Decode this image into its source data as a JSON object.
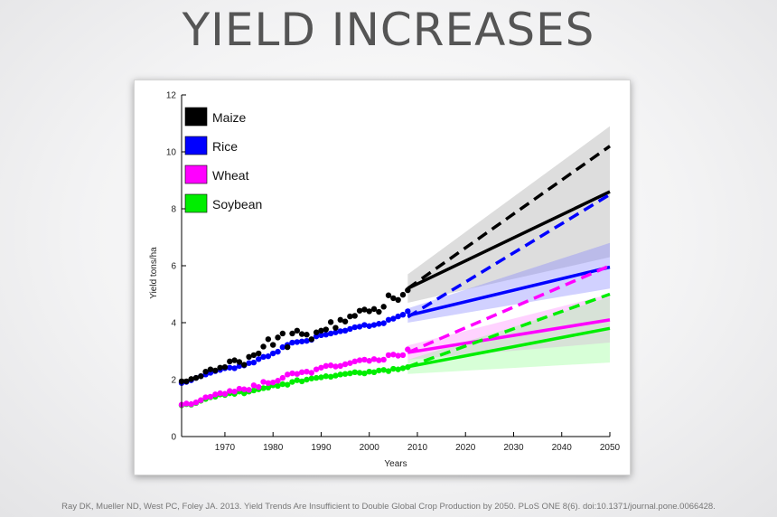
{
  "slide": {
    "title": "YIELD INCREASES",
    "citation": "Ray DK, Mueller ND, West PC, Foley JA. 2013. Yield Trends Are Insufficient to Double Global Crop Production by 2050. PLoS ONE 8(6). doi:10.1371/journal.pone.0066428."
  },
  "chart_data": {
    "type": "scatter",
    "xlabel": "Years",
    "ylabel": "Yield tons/ha",
    "xlim": [
      1961,
      2050
    ],
    "ylim": [
      0,
      12
    ],
    "xticks": [
      1970,
      1980,
      1990,
      2000,
      2010,
      2020,
      2030,
      2040,
      2050
    ],
    "yticks": [
      0,
      2,
      4,
      6,
      8,
      10,
      12
    ],
    "grid": false,
    "legend_position": "top-left",
    "historical_years": [
      1961,
      2008
    ],
    "series": [
      {
        "name": "Maize",
        "color": "#000000",
        "band_color": "#9e9e9e",
        "observed": [
          1.94,
          1.94,
          2.02,
          2.06,
          2.12,
          2.28,
          2.36,
          2.32,
          2.42,
          2.44,
          2.64,
          2.68,
          2.62,
          2.52,
          2.8,
          2.86,
          2.92,
          3.16,
          3.42,
          3.22,
          3.48,
          3.62,
          3.14,
          3.62,
          3.72,
          3.6,
          3.58,
          3.42,
          3.66,
          3.72,
          3.76,
          4.02,
          3.82,
          4.1,
          4.04,
          4.22,
          4.24,
          4.42,
          4.46,
          4.4,
          4.48,
          4.38,
          4.56,
          4.96,
          4.86,
          4.8,
          4.98,
          5.14
        ],
        "required": {
          "x": [
            2008,
            2050
          ],
          "y": [
            5.2,
            10.2
          ]
        },
        "projected": {
          "x": [
            2008,
            2050
          ],
          "y": [
            5.2,
            8.6
          ]
        },
        "band": {
          "x": [
            2008,
            2050
          ],
          "low": [
            4.7,
            6.3
          ],
          "high": [
            5.7,
            10.9
          ]
        }
      },
      {
        "name": "Rice",
        "color": "#0000ff",
        "band_color": "#7b7bff",
        "observed": [
          1.88,
          1.92,
          1.98,
          2.06,
          2.12,
          2.18,
          2.24,
          2.3,
          2.34,
          2.4,
          2.42,
          2.4,
          2.48,
          2.5,
          2.58,
          2.6,
          2.72,
          2.8,
          2.82,
          2.92,
          2.98,
          3.14,
          3.22,
          3.3,
          3.32,
          3.34,
          3.36,
          3.4,
          3.52,
          3.56,
          3.58,
          3.62,
          3.66,
          3.7,
          3.72,
          3.78,
          3.84,
          3.86,
          3.92,
          3.88,
          3.92,
          3.96,
          3.98,
          4.1,
          4.14,
          4.22,
          4.28,
          4.4
        ],
        "required": {
          "x": [
            2008,
            2050
          ],
          "y": [
            4.2,
            8.5
          ]
        },
        "projected": {
          "x": [
            2008,
            2050
          ],
          "y": [
            4.25,
            5.95
          ]
        },
        "band": {
          "x": [
            2008,
            2050
          ],
          "low": [
            4.0,
            5.2
          ],
          "high": [
            4.5,
            6.8
          ]
        }
      },
      {
        "name": "Wheat",
        "color": "#ff00ff",
        "band_color": "#ff80ff",
        "observed": [
          1.12,
          1.16,
          1.14,
          1.2,
          1.28,
          1.38,
          1.4,
          1.48,
          1.52,
          1.5,
          1.6,
          1.58,
          1.68,
          1.66,
          1.64,
          1.8,
          1.74,
          1.92,
          1.88,
          1.9,
          1.96,
          2.06,
          2.18,
          2.22,
          2.2,
          2.26,
          2.28,
          2.24,
          2.36,
          2.42,
          2.48,
          2.5,
          2.46,
          2.48,
          2.54,
          2.58,
          2.64,
          2.68,
          2.7,
          2.66,
          2.72,
          2.68,
          2.7,
          2.86,
          2.88,
          2.84,
          2.86,
          3.06
        ],
        "required": {
          "x": [
            2008,
            2050
          ],
          "y": [
            2.95,
            6.0
          ]
        },
        "projected": {
          "x": [
            2008,
            2050
          ],
          "y": [
            2.95,
            4.1
          ]
        },
        "band": {
          "x": [
            2008,
            2050
          ],
          "low": [
            2.7,
            3.3
          ],
          "high": [
            3.2,
            5.0
          ]
        }
      },
      {
        "name": "Soybean",
        "color": "#00ee00",
        "band_color": "#8cff8c",
        "observed": [
          1.1,
          1.14,
          1.12,
          1.18,
          1.26,
          1.32,
          1.38,
          1.4,
          1.48,
          1.46,
          1.52,
          1.5,
          1.58,
          1.52,
          1.58,
          1.62,
          1.66,
          1.7,
          1.72,
          1.8,
          1.78,
          1.84,
          1.82,
          1.92,
          1.98,
          1.94,
          2.0,
          2.04,
          2.06,
          2.08,
          2.12,
          2.1,
          2.14,
          2.18,
          2.2,
          2.22,
          2.26,
          2.24,
          2.22,
          2.28,
          2.26,
          2.32,
          2.34,
          2.3,
          2.38,
          2.36,
          2.4,
          2.44
        ],
        "required": {
          "x": [
            2008,
            2050
          ],
          "y": [
            2.45,
            5.0
          ]
        },
        "projected": {
          "x": [
            2008,
            2050
          ],
          "y": [
            2.45,
            3.8
          ]
        },
        "band": {
          "x": [
            2008,
            2050
          ],
          "low": [
            2.2,
            2.6
          ],
          "high": [
            2.7,
            4.9
          ]
        }
      }
    ]
  }
}
